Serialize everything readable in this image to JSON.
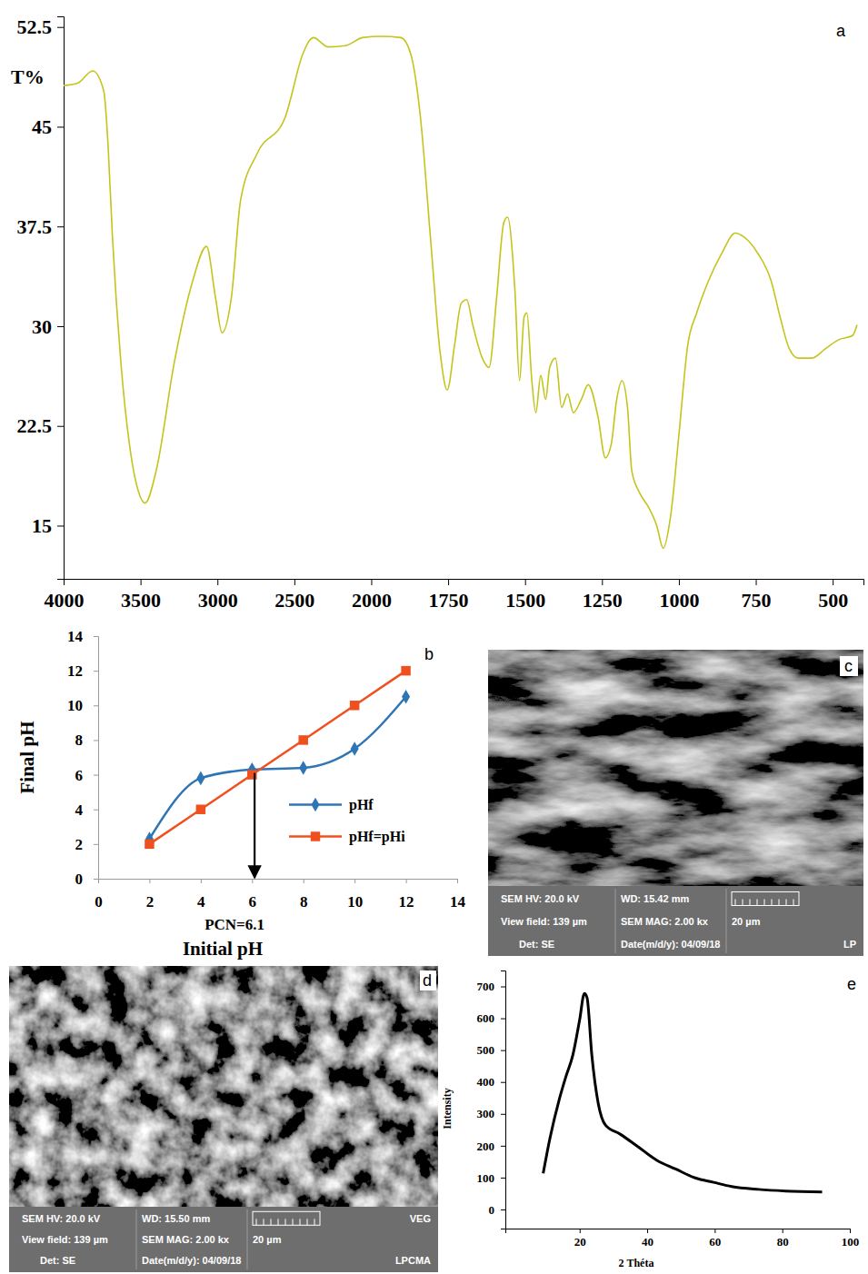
{
  "chart_data": [
    {
      "type": "line",
      "title": "a",
      "y_label": "T%",
      "x": [
        4000,
        3906,
        3811,
        3739,
        3711,
        3683,
        3628,
        3572,
        3517,
        3470,
        3399,
        3280,
        3161,
        3071,
        3012,
        2970,
        2910,
        2849,
        2741,
        2560,
        2444,
        2400,
        2378,
        2278,
        2167,
        2056,
        1968,
        1904,
        1872,
        1840,
        1808,
        1776,
        1753,
        1729,
        1708,
        1690,
        1669,
        1639,
        1617,
        1593,
        1569,
        1557,
        1533,
        1518,
        1503,
        1494,
        1478,
        1465,
        1449,
        1433,
        1420,
        1401,
        1381,
        1362,
        1343,
        1317,
        1295,
        1263,
        1239,
        1220,
        1202,
        1185,
        1167,
        1153,
        1126,
        1099,
        1072,
        1051,
        1027,
        1000,
        971,
        942,
        904,
        860,
        817,
        788,
        744,
        700,
        671,
        641,
        612,
        568,
        524,
        479,
        435,
        421
      ],
      "series": [
        {
          "color": "#c4c41e",
          "values": [
            48.1,
            48.3,
            49.2,
            47.7,
            43.6,
            36.8,
            27.3,
            21.1,
            17.7,
            16.7,
            19.1,
            27.3,
            33.4,
            36.0,
            32.1,
            29.5,
            32.1,
            39.5,
            43.0,
            45.7,
            50.5,
            51.5,
            51.7,
            51.0,
            51.1,
            51.7,
            51.8,
            51.7,
            50.5,
            45.7,
            36.8,
            28.0,
            25.2,
            28.6,
            31.7,
            32.0,
            30.0,
            27.6,
            26.9,
            32.0,
            37.8,
            38.2,
            32.7,
            25.9,
            30.7,
            31.0,
            25.9,
            23.5,
            26.3,
            24.5,
            26.9,
            27.6,
            23.9,
            24.9,
            23.5,
            24.5,
            25.6,
            23.2,
            20.1,
            21.1,
            24.5,
            25.9,
            23.9,
            19.1,
            17.4,
            16.4,
            15.0,
            13.3,
            15.7,
            21.8,
            28.6,
            31.0,
            33.4,
            35.5,
            37.0,
            36.7,
            35.5,
            33.4,
            30.7,
            28.3,
            27.6,
            27.6,
            28.3,
            29.0,
            29.3,
            30.1
          ]
        }
      ],
      "xlim": [
        4000,
        400
      ],
      "xticks": [
        4000,
        3500,
        3000,
        2500,
        2000,
        1750,
        1500,
        1250,
        1000,
        750,
        500
      ],
      "ylim": [
        11,
        53.3
      ],
      "yticks": [
        15,
        22.5,
        30,
        37.5,
        45,
        52.5
      ]
    },
    {
      "type": "line",
      "title": "b",
      "x_label": "Initial pH",
      "y_label": "Final pH",
      "x": [
        2,
        4,
        6,
        8,
        10,
        12
      ],
      "series": [
        {
          "name": "pHf",
          "color": "#2e75b6",
          "marker": "diamond",
          "values": [
            2.3,
            5.8,
            6.3,
            6.4,
            7.5,
            10.5
          ]
        },
        {
          "name": "pHf=pHi",
          "color": "#f0501e",
          "marker": "square",
          "values": [
            2,
            4,
            6,
            8,
            10,
            12
          ]
        }
      ],
      "annotations": [
        {
          "text": "PCN=6.1",
          "x": 6.1,
          "y": 6.1
        }
      ],
      "legend": "right",
      "xlim": [
        0,
        14
      ],
      "xticks": [
        0,
        2,
        4,
        6,
        8,
        10,
        12,
        14
      ],
      "ylim": [
        0,
        14
      ],
      "yticks": [
        0,
        2,
        4,
        6,
        8,
        10,
        12,
        14
      ]
    },
    {
      "type": "line",
      "title": "e",
      "x_label": "2 Théta",
      "y_label": "Intensity",
      "x": [
        9.2,
        11.2,
        14,
        15.9,
        18,
        20,
        21.4,
        22.2,
        23.6,
        25.5,
        27.7,
        31.9,
        37.4,
        42.9,
        48.4,
        54.2,
        59.7,
        65,
        73,
        81,
        91.8
      ],
      "series": [
        {
          "color": "#000000",
          "values": [
            113,
            223,
            347,
            416,
            485,
            595,
            678,
            664,
            485,
            333,
            264,
            237,
            196,
            154,
            127,
            99,
            85,
            72,
            63,
            58,
            55
          ]
        }
      ],
      "xlim": [
        -2,
        100
      ],
      "xticks": [
        20,
        40,
        60,
        80,
        100
      ],
      "ylim": [
        -60,
        750
      ],
      "yticks": [
        0,
        100,
        200,
        300,
        400,
        500,
        600,
        700
      ]
    }
  ],
  "images": [
    {
      "label": "c",
      "hv": "SEM HV: 20.0 kV",
      "wd": "WD: 15.42 mm",
      "view_field": "View field: 139 µm",
      "mag": "SEM MAG: 2.00 kx",
      "scale": "20 µm",
      "det": "Det: SE",
      "date": "Date(m/d/y): 04/09/18",
      "tags": [
        "LP"
      ]
    },
    {
      "label": "d",
      "hv": "SEM HV: 20.0 kV",
      "wd": "WD: 15.50 mm",
      "view_field": "View field: 139 µm",
      "mag": "SEM MAG: 2.00 kx",
      "scale": "20 µm",
      "det": "Det: SE",
      "date": "Date(m/d/y): 04/09/18",
      "tags": [
        "VEG",
        "LPCMA"
      ]
    }
  ]
}
